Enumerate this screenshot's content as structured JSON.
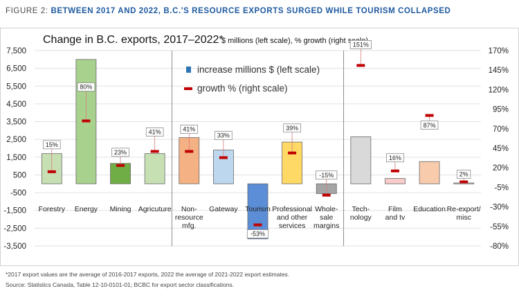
{
  "figure": {
    "label": "FIGURE 2:",
    "title": "BETWEEN 2017 AND 2022, B.C.'S RESOURCE EXPORTS SURGED WHILE TOURISM COLLAPSED"
  },
  "chart_data": {
    "type": "bar",
    "title": "Change in B.C. exports, 2017–2022*",
    "subtitle": "$ millions (left scale), % growth (right scale)",
    "categories": [
      [
        "Forestry"
      ],
      [
        "Energy"
      ],
      [
        "Mining"
      ],
      [
        "Agricuture"
      ],
      [
        "Non-",
        "resource",
        "mfg."
      ],
      [
        "Gateway"
      ],
      [
        "Tourism"
      ],
      [
        "Professional",
        "and other",
        "services"
      ],
      [
        "Whole-",
        "sale",
        "margins"
      ],
      [
        "Tech-",
        "nology"
      ],
      [
        "Film",
        "and tv"
      ],
      [
        "Education"
      ],
      [
        "Re-export/",
        "misc"
      ]
    ],
    "series": [
      {
        "name": "increase millions $ (left scale)",
        "axis": "left",
        "values": [
          1700,
          7000,
          1150,
          1700,
          2600,
          1900,
          -3100,
          2350,
          -550,
          2650,
          300,
          1250,
          50
        ],
        "colors": [
          "#c6e0b4",
          "#a9d18e",
          "#70ad47",
          "#c6e0b4",
          "#f4b183",
          "#bdd7ee",
          "#5b8ed6",
          "#ffd966",
          "#a5a5a5",
          "#d9d9d9",
          "#f8cbcb",
          "#f8cbad",
          "#d9d9d9"
        ]
      },
      {
        "name": "growth % (right scale)",
        "axis": "right",
        "values": [
          15,
          80,
          23,
          41,
          41,
          33,
          -53,
          39,
          -15,
          151,
          16,
          87,
          2
        ],
        "labels": [
          "15%",
          "80%",
          "23%",
          "41%",
          "41%",
          "33%",
          "-53%",
          "39%",
          "-15%",
          "151%",
          "16%",
          "87%",
          "2%"
        ]
      }
    ],
    "y_left": {
      "min": -3500,
      "max": 7500,
      "step": 1000,
      "ticks": [
        "7,500",
        "6,500",
        "5,500",
        "4,500",
        "3,500",
        "2,500",
        "1,500",
        "500",
        "-500",
        "-1,500",
        "-2,500",
        "-3,500"
      ]
    },
    "y_right": {
      "min": -80,
      "max": 170,
      "step": 25,
      "ticks": [
        "170%",
        "145%",
        "120%",
        "95%",
        "70%",
        "45%",
        "20%",
        "-5%",
        "-30%",
        "-55%",
        "-80%"
      ]
    },
    "group_separators_after": [
      3,
      8
    ],
    "legend": {
      "position": "top-center",
      "items": [
        "increase millions $ (left scale)",
        "growth % (right scale)"
      ],
      "bar_marker_color": "#2e75b6",
      "dash_marker_color": "#c00000"
    },
    "dash_color": "#c00000"
  },
  "footnotes": [
    "*2017 export values are the average of 2016-2017 exports, 2022 the average of 2021-2022 export estimates.",
    "Source:  Statistics Canada, Table 12-10-0101-01; BCBC for export sector classifications."
  ]
}
